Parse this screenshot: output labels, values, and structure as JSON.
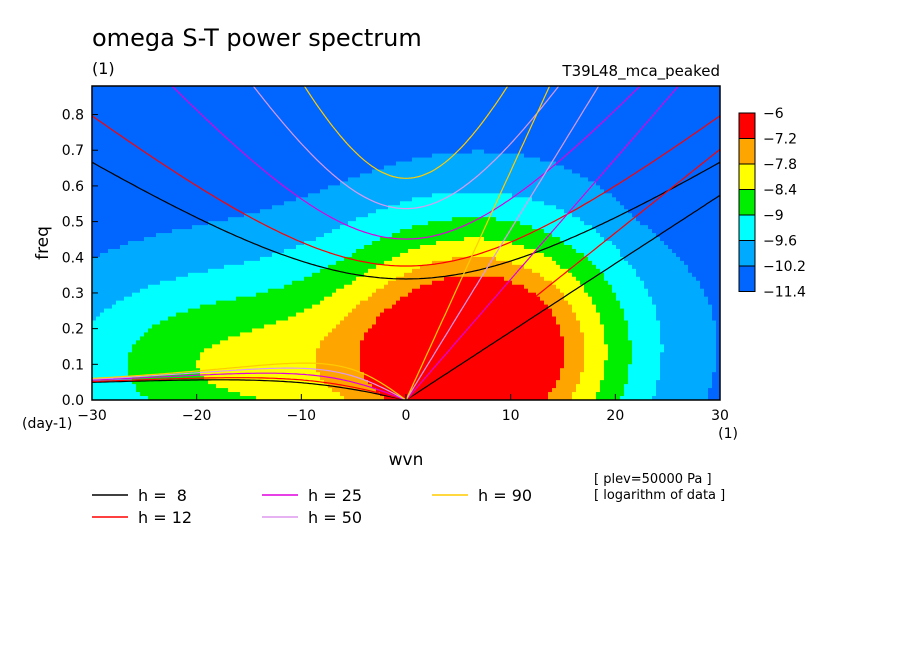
{
  "title": "omega S-T power spectrum",
  "subtitle": "(1)",
  "run_label": "T39L48_mca_peaked",
  "notes": [
    "[ plev=50000 Pa ]",
    "[ logarithm of data ]"
  ],
  "chart_data": {
    "type": "heatmap",
    "title": "omega S-T power spectrum",
    "xlabel": "wvn",
    "ylabel": "freq",
    "x_units": "(1)",
    "y_units": "(day-1)",
    "xlim": [
      -30,
      30
    ],
    "ylim": [
      0,
      0.88
    ],
    "x_ticks": [
      "-30",
      "-20",
      "-10",
      "0",
      "10",
      "20",
      "30"
    ],
    "y_ticks": [
      "0.0",
      "0.1",
      "0.2",
      "0.3",
      "0.4",
      "0.5",
      "0.6",
      "0.7",
      "0.8"
    ],
    "grid": false,
    "colorbar": {
      "position": "right",
      "levels": [
        "-6",
        "-7.2",
        "-7.8",
        "-8.4",
        "-9",
        "-9.6",
        "-10.2",
        "-11.4"
      ],
      "colors": [
        "#ff0000",
        "#ffa500",
        "#ffff00",
        "#00ee00",
        "#00ffff",
        "#00aaff",
        "#0066ff"
      ]
    },
    "fill_values": [
      -6.6,
      -7.5,
      -8.1,
      -8.7,
      -9.3,
      -9.9,
      -10.8
    ],
    "dispersion_legend": [
      {
        "label": "h =  8",
        "h": 8,
        "color": "#000000"
      },
      {
        "label": "h = 12",
        "h": 12,
        "color": "#ff0000"
      },
      {
        "label": "h = 25",
        "h": 25,
        "color": "#dd00dd"
      },
      {
        "label": "h = 50",
        "h": 50,
        "color": "#dd99ee"
      },
      {
        "label": "h = 90",
        "h": 90,
        "color": "#ffcc00"
      }
    ]
  }
}
